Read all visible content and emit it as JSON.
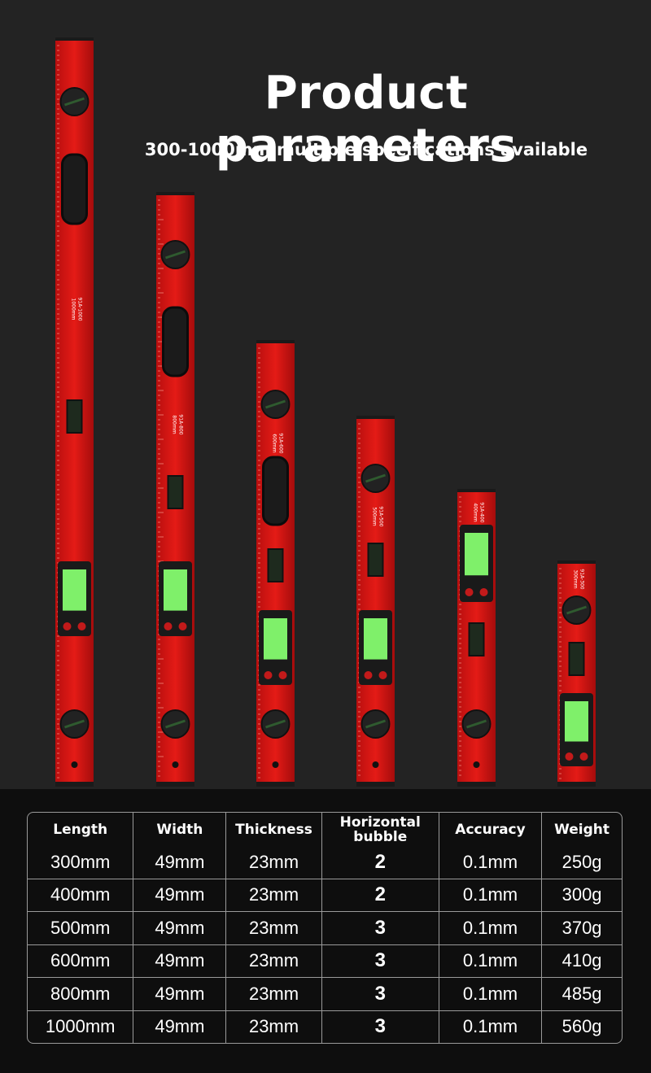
{
  "header": {
    "title": "Product parameters",
    "subtitle": "300-1000mm multiple specifications available"
  },
  "levels": [
    {
      "size": "1000mm",
      "model": "91A-1000"
    },
    {
      "size": "800mm",
      "model": "91A-800"
    },
    {
      "size": "600mm",
      "model": "91A-600"
    },
    {
      "size": "500mm",
      "model": "91A-500"
    },
    {
      "size": "400mm",
      "model": "91A-400"
    },
    {
      "size": "300mm",
      "model": "91A-300"
    }
  ],
  "table": {
    "columns": [
      "Length",
      "Width",
      "Thickness",
      "Horizontal bubble",
      "Accuracy",
      "Weight"
    ],
    "rows": [
      [
        "300mm",
        "49mm",
        "23mm",
        "2",
        "0.1mm",
        "250g"
      ],
      [
        "400mm",
        "49mm",
        "23mm",
        "2",
        "0.1mm",
        "300g"
      ],
      [
        "500mm",
        "49mm",
        "23mm",
        "3",
        "0.1mm",
        "370g"
      ],
      [
        "600mm",
        "49mm",
        "23mm",
        "3",
        "0.1mm",
        "410g"
      ],
      [
        "800mm",
        "49mm",
        "23mm",
        "3",
        "0.1mm",
        "485g"
      ],
      [
        "1000mm",
        "49mm",
        "23mm",
        "3",
        "0.1mm",
        "560g"
      ]
    ]
  }
}
